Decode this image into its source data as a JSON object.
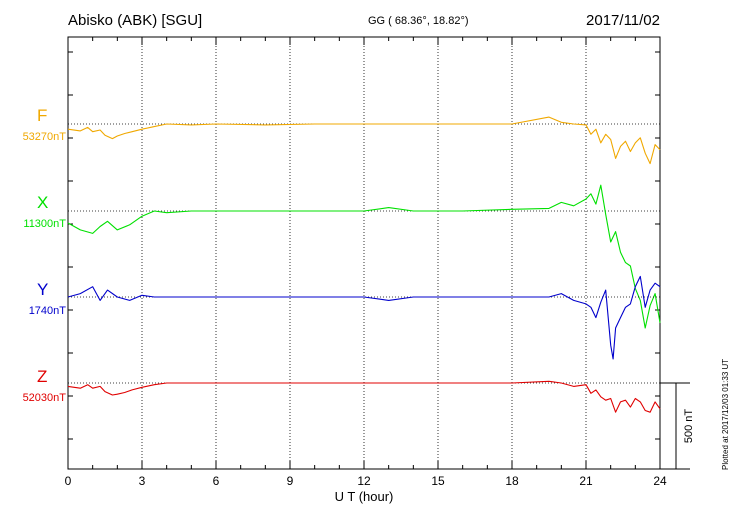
{
  "header": {
    "station": "Abisko (ABK)  [SGU]",
    "coords": "GG ( 68.36°,  18.82°)",
    "date": "2017/11/02"
  },
  "plotted_note": "Plotted at 2017/12/03 01:33 UT",
  "colors": {
    "F": "#f0a800",
    "X": "#00e000",
    "Y": "#0000cc",
    "Z": "#e00000",
    "axes": "#000000"
  },
  "chart_data": {
    "type": "line",
    "title": "Abisko (ABK)  [SGU]",
    "xlabel": "U T (hour)",
    "ylabel": "",
    "xlim": [
      0,
      24
    ],
    "x_ticks": [
      0,
      3,
      6,
      9,
      12,
      15,
      18,
      21,
      24
    ],
    "x_tick_labels": [
      "0",
      "3",
      "6",
      "9",
      "12",
      "15",
      "18",
      "21",
      "24"
    ],
    "grid": "dotted vertical at every 3 hours",
    "scale_bar": "500 nT",
    "series": [
      {
        "name": "F",
        "baseline": "53270nT",
        "x": [
          0,
          0.5,
          0.8,
          1,
          1.3,
          1.5,
          1.8,
          2,
          2.3,
          2.6,
          3,
          3.5,
          4,
          5,
          6,
          8,
          10,
          12,
          14,
          16,
          18,
          19.5,
          20,
          20.5,
          21,
          21.2,
          21.4,
          21.6,
          21.8,
          22,
          22.2,
          22.4,
          22.6,
          22.8,
          23,
          23.2,
          23.4,
          23.6,
          23.8,
          24
        ],
        "y": [
          -30,
          -40,
          -20,
          -45,
          -35,
          -65,
          -85,
          -70,
          -55,
          -45,
          -30,
          -15,
          0,
          -5,
          0,
          -5,
          0,
          0,
          0,
          0,
          0,
          40,
          10,
          0,
          -5,
          -60,
          -30,
          -110,
          -60,
          -90,
          -200,
          -130,
          -100,
          -160,
          -110,
          -80,
          -170,
          -230,
          -120,
          -150
        ]
      },
      {
        "name": "X",
        "baseline": "11300nT",
        "x": [
          0,
          0.5,
          1,
          1.3,
          1.6,
          2,
          2.5,
          3,
          3.5,
          4,
          5,
          6,
          8,
          10,
          12,
          13,
          14,
          16,
          18,
          19.5,
          20,
          20.5,
          21,
          21.2,
          21.4,
          21.6,
          21.8,
          22,
          22.2,
          22.4,
          22.6,
          22.8,
          23,
          23.2,
          23.4,
          23.6,
          23.8,
          24
        ],
        "y": [
          -70,
          -110,
          -130,
          -90,
          -60,
          -110,
          -80,
          -30,
          0,
          -10,
          0,
          0,
          0,
          0,
          0,
          20,
          0,
          0,
          10,
          15,
          50,
          30,
          70,
          100,
          40,
          150,
          -20,
          -180,
          -120,
          -240,
          -300,
          -320,
          -450,
          -520,
          -680,
          -550,
          -480,
          -650
        ]
      },
      {
        "name": "Y",
        "baseline": "1740nT",
        "x": [
          0,
          0.5,
          1,
          1.3,
          1.6,
          2,
          2.5,
          3,
          3.5,
          4,
          5,
          6,
          8,
          10,
          12,
          13,
          14,
          16,
          18,
          19.5,
          20,
          20.5,
          21,
          21.2,
          21.4,
          21.6,
          21.8,
          22,
          22.1,
          22.2,
          22.4,
          22.6,
          22.8,
          23,
          23.2,
          23.4,
          23.6,
          23.8,
          24
        ],
        "y": [
          0,
          20,
          60,
          -20,
          40,
          0,
          -20,
          10,
          0,
          0,
          0,
          0,
          0,
          0,
          0,
          -20,
          0,
          0,
          0,
          0,
          20,
          -20,
          -40,
          -60,
          -120,
          -30,
          40,
          -280,
          -360,
          -180,
          -120,
          -60,
          -40,
          60,
          120,
          -60,
          40,
          80,
          60
        ]
      },
      {
        "name": "Z",
        "baseline": "52030nT",
        "x": [
          0,
          0.5,
          0.8,
          1,
          1.3,
          1.5,
          1.8,
          2,
          2.3,
          2.6,
          3,
          3.5,
          4,
          5,
          6,
          8,
          10,
          12,
          14,
          16,
          18,
          19.5,
          20,
          20.5,
          21,
          21.2,
          21.4,
          21.6,
          21.8,
          22,
          22.2,
          22.4,
          22.6,
          22.8,
          23,
          23.2,
          23.4,
          23.6,
          23.8,
          24
        ],
        "y": [
          -20,
          -30,
          -10,
          -30,
          -20,
          -50,
          -70,
          -65,
          -55,
          -40,
          -25,
          -10,
          0,
          0,
          0,
          0,
          0,
          0,
          0,
          0,
          0,
          10,
          0,
          -20,
          -10,
          -60,
          -40,
          -80,
          -100,
          -90,
          -170,
          -110,
          -100,
          -140,
          -90,
          -110,
          -160,
          -170,
          -110,
          -150
        ]
      }
    ]
  }
}
